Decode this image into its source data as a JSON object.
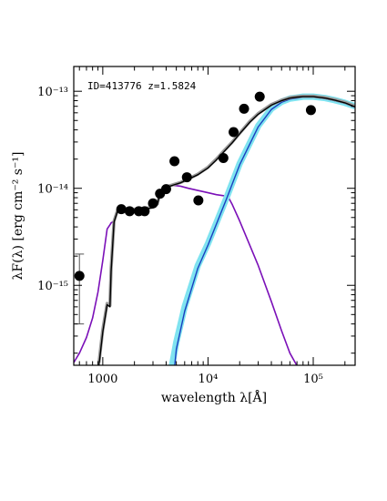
{
  "chart_data": {
    "type": "scatter",
    "annotation": "ID=413776 z=1.5824",
    "xlabel": "wavelength λ[Å]",
    "ylabel": "λF(λ) [erg cm⁻² s⁻¹]",
    "xscale": "log",
    "yscale": "log",
    "xlim": [
      530,
      250000
    ],
    "ylim": [
      1.5e-16,
      1.8e-13
    ],
    "x_ticks": [
      {
        "value": 1000,
        "label": "1000"
      },
      {
        "value": 10000,
        "label": "10⁴"
      },
      {
        "value": 100000,
        "label": "10⁵"
      }
    ],
    "y_ticks": [
      {
        "value": 1e-15,
        "label": "10⁻¹⁵"
      },
      {
        "value": 1e-14,
        "label": "10⁻¹⁴"
      },
      {
        "value": 1e-13,
        "label": "10⁻¹³"
      }
    ],
    "photometry": {
      "x": [
        600,
        1500,
        1800,
        2200,
        2500,
        3000,
        3500,
        4000,
        4800,
        6300,
        8100,
        14000,
        17500,
        22000,
        31000,
        95000
      ],
      "y": [
        1.25e-15,
        6.1e-15,
        5.8e-15,
        5.8e-15,
        5.8e-15,
        7e-15,
        8.8e-15,
        9.8e-15,
        1.9e-14,
        1.3e-14,
        7.5e-15,
        2.05e-14,
        3.8e-14,
        6.6e-14,
        8.8e-14,
        6.4e-14
      ],
      "yerr_low": [
        4e-16,
        0,
        0,
        0,
        0,
        0,
        0,
        0,
        0,
        0,
        0,
        0,
        0,
        0,
        0,
        0
      ],
      "yerr_high": [
        2.1e-15,
        0,
        0,
        0,
        0,
        0,
        0,
        0,
        0,
        0,
        0,
        0,
        0,
        0,
        0,
        0
      ]
    },
    "series": [
      {
        "color": "#7b10b8",
        "x": [
          530,
          600,
          700,
          800,
          900,
          1000,
          1100,
          1170,
          1200,
          1280,
          1400,
          1600,
          1800,
          2000,
          2500,
          3000,
          3300,
          3500,
          3800,
          4000,
          4200,
          4800,
          5500,
          6500,
          8000,
          10000,
          12000,
          14000,
          15500,
          17000,
          20000,
          30000,
          40000,
          50000,
          60000,
          75000
        ],
        "y": [
          1.6e-16,
          2e-16,
          2.9e-16,
          4.6e-16,
          8.5e-16,
          1.8e-15,
          3.8e-15,
          4.2e-15,
          4.4e-15,
          4.6e-15,
          6.2e-15,
          6.2e-15,
          6.1e-15,
          6.1e-15,
          6.2e-15,
          6.4e-15,
          6.9e-15,
          9e-15,
          9.8e-15,
          1e-14,
          1.05e-14,
          1.07e-14,
          1.05e-14,
          1e-14,
          9.5e-15,
          9e-15,
          8.6e-15,
          8.4e-15,
          8.2e-15,
          6.8e-15,
          4.6e-15,
          1.6e-15,
          6.8e-16,
          3.4e-16,
          2e-16,
          1.3e-16
        ]
      },
      {
        "color": "#7fe3f0",
        "x": [
          4500,
          5000,
          6000,
          8000,
          10000,
          15000,
          20000,
          30000,
          40000,
          50000,
          60000,
          70000,
          80000,
          100000,
          130000,
          160000,
          200000,
          250000
        ],
        "y": [
          1.4e-16,
          2.6e-16,
          6e-16,
          1.6e-15,
          2.7e-15,
          8e-15,
          1.8e-14,
          4.4e-14,
          6.6e-14,
          7.8e-14,
          8.4e-14,
          8.6e-14,
          8.8e-14,
          8.8e-14,
          8.5e-14,
          8.1e-14,
          7.6e-14,
          7e-14
        ]
      },
      {
        "color": "#1a3fc0",
        "x": [
          4800,
          5000,
          6000,
          8000,
          10000,
          15000,
          20000,
          30000,
          40000,
          50000,
          60000,
          70000,
          80000,
          100000,
          130000,
          160000,
          200000,
          250000
        ],
        "y": [
          1.4e-16,
          2.2e-16,
          5.4e-16,
          1.5e-15,
          2.6e-15,
          7.8e-15,
          1.75e-14,
          4.3e-14,
          6.5e-14,
          7.7e-14,
          8.3e-14,
          8.5e-14,
          8.7e-14,
          8.7e-14,
          8.4e-14,
          8e-14,
          7.5e-14,
          6.8e-14
        ]
      },
      {
        "color": "#999999",
        "x": [
          920,
          1000,
          1100,
          1170,
          1200,
          1280,
          1400,
          1600,
          1800,
          2000,
          2500,
          3000,
          3300,
          3500,
          3800,
          4000,
          4200,
          4800,
          5500,
          6500,
          8000,
          10000,
          12000,
          14000,
          17000,
          20000,
          25000,
          30000,
          40000,
          50000,
          60000,
          70000,
          80000,
          100000,
          130000,
          160000,
          200000,
          250000
        ],
        "y": [
          1.6e-16,
          3.5e-16,
          6.5e-16,
          6.2e-16,
          1.5e-15,
          4.6e-15,
          6.2e-15,
          6.2e-15,
          6.1e-15,
          6.1e-15,
          6.2e-15,
          6.4e-15,
          6.9e-15,
          9e-15,
          9.8e-15,
          1e-14,
          1.05e-14,
          1.1e-14,
          1.15e-14,
          1.25e-14,
          1.4e-14,
          1.65e-14,
          2e-14,
          2.4e-14,
          3e-14,
          3.7e-14,
          4.9e-14,
          5.9e-14,
          7.3e-14,
          8.1e-14,
          8.6e-14,
          8.8e-14,
          8.9e-14,
          8.9e-14,
          8.6e-14,
          8.2e-14,
          7.7e-14,
          7e-14
        ]
      },
      {
        "color": "#000000",
        "x": [
          920,
          1000,
          1100,
          1170,
          1200,
          1280,
          1400,
          1600,
          1800,
          2000,
          2500,
          3000,
          3300,
          3500,
          3800,
          4000,
          4200,
          4800,
          5500,
          6500,
          8000,
          10000,
          12000,
          14000,
          17000,
          20000,
          25000,
          30000,
          40000,
          50000,
          60000,
          70000,
          80000,
          100000,
          130000,
          160000,
          200000,
          250000
        ],
        "y": [
          1.5e-16,
          3.3e-16,
          6.3e-16,
          6e-16,
          1.4e-15,
          4.5e-15,
          6.1e-15,
          6.1e-15,
          6e-15,
          6e-15,
          6.1e-15,
          6.3e-15,
          6.8e-15,
          8.9e-15,
          9.7e-15,
          9.9e-15,
          1.04e-14,
          1.09e-14,
          1.14e-14,
          1.24e-14,
          1.38e-14,
          1.62e-14,
          1.96e-14,
          2.35e-14,
          2.95e-14,
          3.65e-14,
          4.8e-14,
          5.8e-14,
          7.2e-14,
          8e-14,
          8.5e-14,
          8.7e-14,
          8.8e-14,
          8.8e-14,
          8.5e-14,
          8.1e-14,
          7.6e-14,
          6.9e-14
        ]
      }
    ]
  }
}
